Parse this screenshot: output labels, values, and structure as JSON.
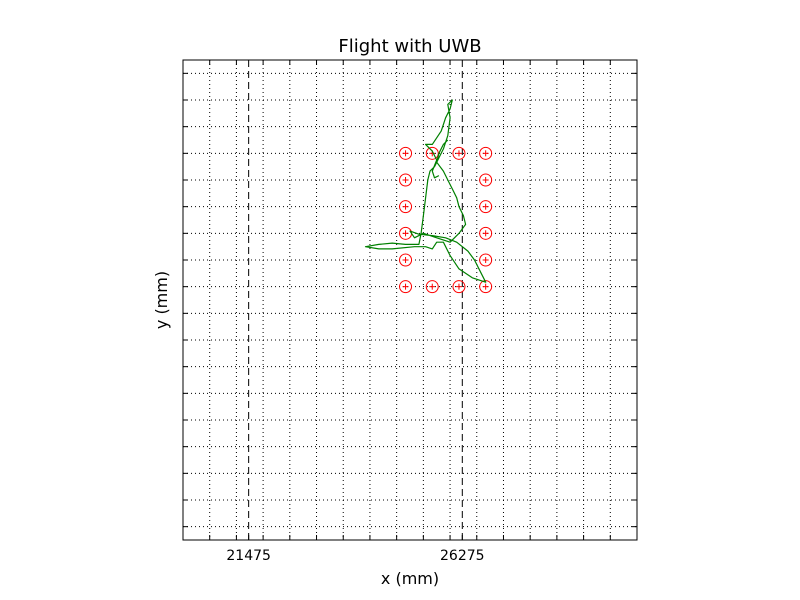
{
  "chart_data": {
    "type": "scatter",
    "title": "Flight with UWB",
    "xlabel": "x (mm)",
    "ylabel": "y (mm)",
    "xlim": [
      20000,
      30200
    ],
    "ylim": [
      -2700,
      8100
    ],
    "grid": true,
    "x_ticks": [
      20600,
      21200,
      21800,
      22400,
      23000,
      23600,
      24200,
      24800,
      25400,
      26000,
      26600,
      27200,
      27800,
      28400,
      29000,
      29600
    ],
    "y_ticks": [
      -2400,
      -1800,
      -1200,
      -600,
      0,
      600,
      1200,
      1800,
      2400,
      3000,
      3600,
      4200,
      4800,
      5400,
      6000,
      6600,
      7200,
      7800
    ],
    "x_tick_labels": [
      {
        "value": 21475,
        "label": "21475"
      },
      {
        "value": 26275,
        "label": "26275"
      }
    ],
    "vlines": [
      21475,
      26275
    ],
    "markers": {
      "color": "#ff0000",
      "points": [
        [
          25000,
          6000
        ],
        [
          25600,
          6000
        ],
        [
          26200,
          6000
        ],
        [
          26800,
          6000
        ],
        [
          25000,
          5400
        ],
        [
          26800,
          5400
        ],
        [
          25000,
          4800
        ],
        [
          26800,
          4800
        ],
        [
          25000,
          4200
        ],
        [
          26800,
          4200
        ],
        [
          25000,
          3600
        ],
        [
          26800,
          3600
        ],
        [
          25000,
          3000
        ],
        [
          25600,
          3000
        ],
        [
          26200,
          3000
        ],
        [
          26800,
          3000
        ]
      ]
    },
    "series": [
      {
        "color": "#008000",
        "points": [
          [
            25950,
            6300
          ],
          [
            25850,
            6200
          ],
          [
            25750,
            6000
          ],
          [
            25700,
            5800
          ],
          [
            25850,
            5600
          ],
          [
            25950,
            5400
          ],
          [
            26050,
            5200
          ],
          [
            26150,
            5000
          ],
          [
            26200,
            4800
          ],
          [
            26300,
            4600
          ],
          [
            26350,
            4400
          ],
          [
            26200,
            4200
          ],
          [
            26000,
            4000
          ],
          [
            25700,
            4100
          ],
          [
            25400,
            4200
          ],
          [
            25200,
            4100
          ],
          [
            25100,
            4250
          ],
          [
            25300,
            4180
          ],
          [
            25600,
            4150
          ],
          [
            25900,
            4100
          ],
          [
            26150,
            4000
          ],
          [
            26400,
            3800
          ],
          [
            26550,
            3600
          ],
          [
            26700,
            3300
          ],
          [
            26800,
            3100
          ],
          [
            26500,
            3200
          ],
          [
            26200,
            3400
          ],
          [
            26000,
            3700
          ],
          [
            25850,
            4000
          ],
          [
            25700,
            4000
          ],
          [
            25600,
            3850
          ],
          [
            25450,
            3900
          ],
          [
            25200,
            3900
          ],
          [
            24700,
            3850
          ],
          [
            24400,
            3850
          ],
          [
            24100,
            3900
          ],
          [
            24400,
            3950
          ],
          [
            24700,
            3980
          ],
          [
            25000,
            3950
          ],
          [
            25300,
            3950
          ],
          [
            25350,
            4200
          ],
          [
            25400,
            4600
          ],
          [
            25450,
            5000
          ],
          [
            25500,
            5400
          ],
          [
            25550,
            5600
          ],
          [
            25650,
            5700
          ],
          [
            25750,
            5900
          ],
          [
            25850,
            6100
          ],
          [
            25950,
            6400
          ],
          [
            26000,
            6800
          ],
          [
            25950,
            7100
          ],
          [
            26050,
            7200
          ],
          [
            26000,
            7000
          ],
          [
            25900,
            6800
          ],
          [
            25800,
            6500
          ],
          [
            25600,
            6200
          ],
          [
            25450,
            6200
          ],
          [
            25600,
            6050
          ],
          [
            25700,
            5850
          ],
          [
            25600,
            5600
          ],
          [
            25650,
            5450
          ],
          [
            25750,
            5500
          ]
        ]
      }
    ]
  }
}
